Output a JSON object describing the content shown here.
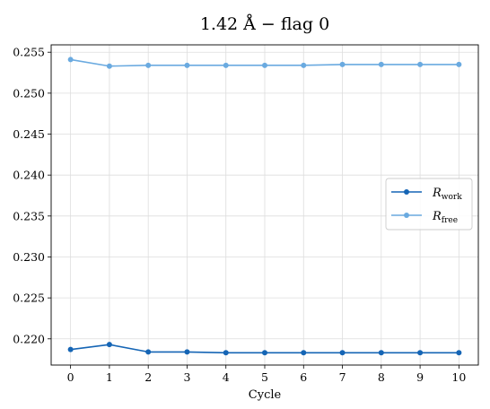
{
  "chart_data": {
    "type": "line",
    "title": "1.42 Å  −  flag 0",
    "xlabel": "Cycle",
    "ylabel": "",
    "x": [
      0,
      1,
      2,
      3,
      4,
      5,
      6,
      7,
      8,
      9,
      10
    ],
    "xticks": [
      0,
      1,
      2,
      3,
      4,
      5,
      6,
      7,
      8,
      9,
      10
    ],
    "yticks": [
      0.22,
      0.225,
      0.23,
      0.235,
      0.24,
      0.245,
      0.25,
      0.255
    ],
    "ytick_labels": [
      "0.220",
      "0.225",
      "0.230",
      "0.235",
      "0.240",
      "0.245",
      "0.250",
      "0.255"
    ],
    "xlim": [
      -0.5,
      10.5
    ],
    "ylim": [
      0.2168,
      0.2559
    ],
    "grid": true,
    "legend_position": "center-right",
    "series": [
      {
        "name": "R",
        "subscript": "work",
        "color": "#1565b5",
        "values": [
          0.2187,
          0.2193,
          0.2184,
          0.2184,
          0.2183,
          0.2183,
          0.2183,
          0.2183,
          0.2183,
          0.2183,
          0.2183
        ]
      },
      {
        "name": "R",
        "subscript": "free",
        "color": "#6aaae0",
        "values": [
          0.2541,
          0.2533,
          0.2534,
          0.2534,
          0.2534,
          0.2534,
          0.2534,
          0.2535,
          0.2535,
          0.2535,
          0.2535
        ]
      }
    ]
  }
}
